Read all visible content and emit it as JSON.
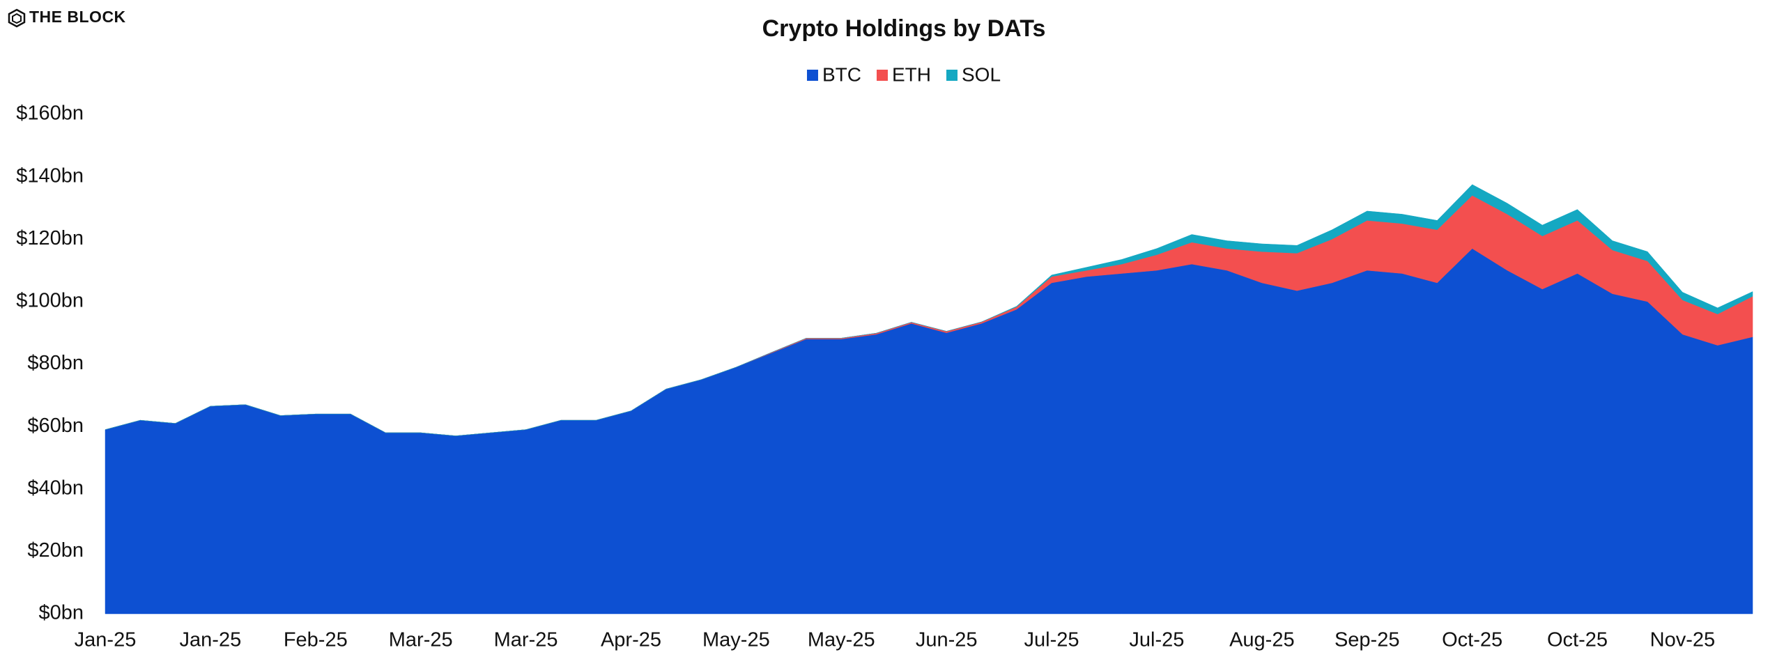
{
  "brand": "THE BLOCK",
  "chart_data": {
    "type": "stacked-area",
    "title": "Crypto Holdings by DATs",
    "legend": "top",
    "grid": false,
    "categories": [
      "Jan-25",
      null,
      null,
      "Jan-25",
      null,
      null,
      "Feb-25",
      null,
      null,
      "Mar-25",
      null,
      null,
      "Mar-25",
      null,
      null,
      "Apr-25",
      null,
      null,
      "May-25",
      null,
      null,
      "May-25",
      null,
      null,
      "Jun-25",
      null,
      null,
      "Jul-25",
      null,
      null,
      "Jul-25",
      null,
      null,
      "Aug-25",
      null,
      null,
      "Sep-25",
      null,
      null,
      "Oct-25",
      null,
      null,
      "Oct-25",
      null,
      null,
      "Nov-25",
      null,
      null
    ],
    "series": [
      {
        "name": "BTC",
        "color": "#0d50d2",
        "values": [
          59,
          62,
          61,
          66.5,
          67,
          63.5,
          64,
          64,
          58,
          58,
          57,
          58,
          59,
          62,
          62,
          65,
          72,
          75,
          79,
          83.5,
          88,
          88,
          89.5,
          93,
          90,
          93,
          97.5,
          106,
          108,
          109,
          110,
          112,
          110,
          106,
          103.5,
          106,
          110,
          109,
          106,
          117,
          110,
          104,
          109,
          102.5,
          100,
          89.5,
          86,
          88.7
        ]
      },
      {
        "name": "ETH",
        "color": "#f34f4f",
        "values": [
          0,
          0,
          0,
          0,
          0,
          0,
          0,
          0,
          0,
          0,
          0,
          0,
          0,
          0,
          0,
          0,
          0,
          0,
          0,
          0.2,
          0.3,
          0.3,
          0.4,
          0.4,
          0.5,
          0.5,
          0.8,
          2,
          2,
          3,
          5,
          7,
          7,
          10,
          12,
          14,
          16,
          16,
          17,
          17,
          18,
          17,
          17,
          14,
          13,
          11,
          10,
          13
        ]
      },
      {
        "name": "SOL",
        "color": "#14a8c2",
        "values": [
          0,
          0,
          0,
          0,
          0,
          0,
          0,
          0,
          0,
          0,
          0,
          0,
          0,
          0,
          0,
          0,
          0,
          0,
          0,
          0,
          0,
          0,
          0,
          0,
          0,
          0,
          0.2,
          0.5,
          1,
          1.5,
          2,
          2.5,
          2.5,
          2.5,
          2.5,
          3,
          3,
          3,
          3,
          3.5,
          3.5,
          3.5,
          3.5,
          3,
          3,
          2.5,
          2,
          1.5
        ]
      }
    ],
    "ylim": [
      0,
      160
    ],
    "yticks": [
      {
        "value": 0,
        "label": "$0bn"
      },
      {
        "value": 20,
        "label": "$20bn"
      },
      {
        "value": 40,
        "label": "$40bn"
      },
      {
        "value": 60,
        "label": "$60bn"
      },
      {
        "value": 80,
        "label": "$80bn"
      },
      {
        "value": 100,
        "label": "$100bn"
      },
      {
        "value": 120,
        "label": "$120bn"
      },
      {
        "value": 140,
        "label": "$140bn"
      },
      {
        "value": 160,
        "label": "$160bn"
      }
    ]
  }
}
